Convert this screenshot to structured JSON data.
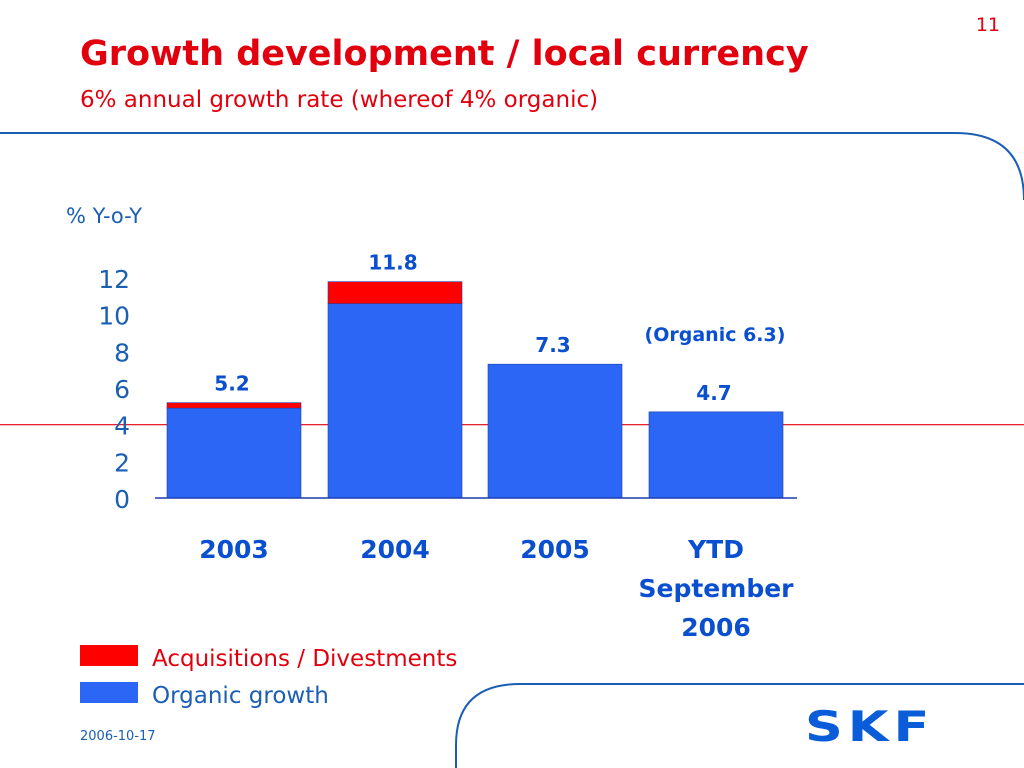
{
  "page_number": "11",
  "title": "Growth development / local currency",
  "subtitle": "6% annual growth rate (whereof 4% organic)",
  "footer_date": "2006-10-17",
  "logo_text": "SKF",
  "colors": {
    "accent_red": "#e2000f",
    "organic_blue": "#2b66f5",
    "acquisition_red": "#ff0000",
    "text_blue": "#1a5fb4",
    "frame_blue": "#1a5fb4"
  },
  "chart_data": {
    "type": "bar",
    "stacked": true,
    "ylabel": "% Y-o-Y",
    "ylim": [
      0,
      12
    ],
    "yticks": [
      0,
      2,
      4,
      6,
      8,
      10,
      12
    ],
    "reference_line": 4,
    "categories": [
      [
        "2003"
      ],
      [
        "2004"
      ],
      [
        "2005"
      ],
      [
        "YTD",
        "September",
        "2006"
      ]
    ],
    "series": [
      {
        "name": "Organic growth",
        "color": "#2b66f5",
        "values": [
          4.9,
          10.6,
          7.3,
          4.7
        ]
      },
      {
        "name": "Acquisitions / Divestments",
        "color": "#ff0000",
        "values": [
          0.3,
          1.2,
          0,
          0
        ]
      }
    ],
    "data_labels": [
      "5.2",
      "11.8",
      "7.3",
      "4.7"
    ],
    "annotation": "(Organic 6.3)",
    "legend": {
      "placement": "bottom-left",
      "entries": [
        {
          "label": "Acquisitions / Divestments",
          "color": "#ff0000",
          "text_color": "#e2000f"
        },
        {
          "label": "Organic growth",
          "color": "#2b66f5",
          "text_color": "#1a5fb4"
        }
      ]
    }
  }
}
